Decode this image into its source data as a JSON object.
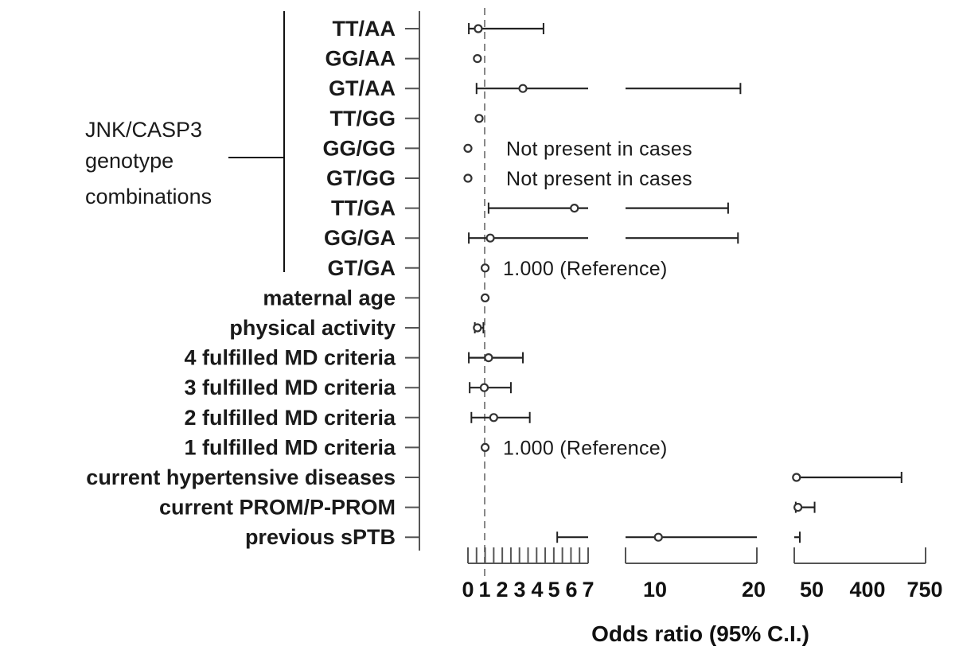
{
  "chart_data": {
    "type": "forest",
    "xlabel": "Odds ratio (95% C.I.)",
    "group_label_lines": [
      "JNK/CASP3",
      "genotype",
      "combinations"
    ],
    "x_axis_segments": [
      {
        "min": 0,
        "max": 7,
        "ticks": [
          0,
          0.5,
          1,
          1.5,
          2,
          2.5,
          3,
          3.5,
          4,
          4.5,
          5,
          5.5,
          6,
          6.5,
          7
        ],
        "labels": [
          "0",
          "1",
          "2",
          "3",
          "4",
          "5",
          "6",
          "7"
        ],
        "label_values": [
          0,
          1,
          2,
          3,
          4,
          5,
          6,
          7
        ]
      },
      {
        "min": 7,
        "max": 23,
        "ticks": [
          7,
          23
        ],
        "labels": [
          "10",
          "20"
        ],
        "label_values": [
          10,
          20
        ]
      },
      {
        "min": 40,
        "max": 750,
        "ticks": [
          40,
          750
        ],
        "labels": [
          "50",
          "400",
          "750"
        ],
        "label_values": [
          50,
          400,
          750
        ]
      }
    ],
    "reference_value": 1,
    "rows": [
      {
        "label": "TT/AA",
        "group": "genotype",
        "or": 0.6,
        "lower": 0.05,
        "upper": 4.4
      },
      {
        "label": "GG/AA",
        "group": "genotype",
        "or": 0.55
      },
      {
        "label": "GT/AA",
        "group": "genotype",
        "or": 3.2,
        "lower": 0.5,
        "upper": 21
      },
      {
        "label": "TT/GG",
        "group": "genotype",
        "or": 0.65
      },
      {
        "label": "GG/GG",
        "group": "genotype",
        "or": 0,
        "note": "Not present in cases"
      },
      {
        "label": "GT/GG",
        "group": "genotype",
        "or": 0,
        "note": "Not present in cases"
      },
      {
        "label": "TT/GA",
        "group": "genotype",
        "or": 6.2,
        "lower": 1.2,
        "upper": 19.5
      },
      {
        "label": "GG/GA",
        "group": "genotype",
        "or": 1.3,
        "lower": 0.05,
        "upper": 20.7
      },
      {
        "label": "GT/GA",
        "group": "genotype",
        "or": 1.0,
        "note": "1.000 (Reference)"
      },
      {
        "label": "maternal age",
        "or": 1.0
      },
      {
        "label": "physical activity",
        "or": 0.55,
        "lower": 0.4,
        "upper": 0.9
      },
      {
        "label": "4 fulfilled MD criteria",
        "or": 1.2,
        "lower": 0.05,
        "upper": 3.2
      },
      {
        "label": "3 fulfilled MD criteria",
        "or": 0.95,
        "lower": 0.1,
        "upper": 2.5
      },
      {
        "label": "2 fulfilled MD criteria",
        "or": 1.5,
        "lower": 0.2,
        "upper": 3.6
      },
      {
        "label": "1 fulfilled MD criteria",
        "or": 1.0,
        "note": "1.000 (Reference)"
      },
      {
        "label": "current hypertensive diseases",
        "or": 52,
        "upper": 620
      },
      {
        "label": "current PROM/P-PROM",
        "or": 60,
        "lower": 48,
        "upper": 150
      },
      {
        "label": "previous sPTB",
        "or": 11,
        "lower": 5.2,
        "upper": 70
      }
    ]
  }
}
